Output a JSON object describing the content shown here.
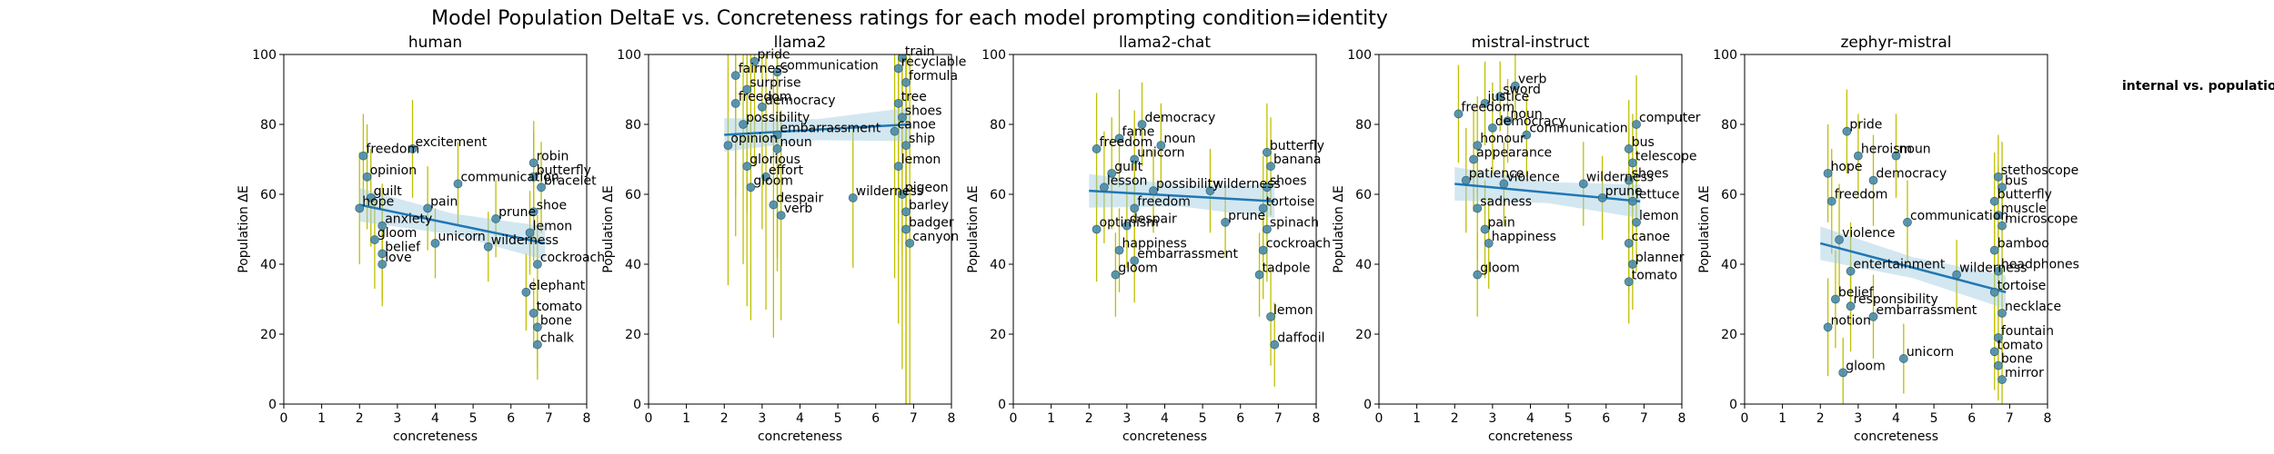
{
  "figure": {
    "title": "Model Population DeltaE vs. Concreteness ratings for each model prompting condition=identity",
    "legend_title": "internal vs. population d"
  },
  "colors": {
    "error_bar": "#bfbf00",
    "point": "#4a8ba8",
    "point_edge": "#2b5f78",
    "fit": "#1f77b4",
    "band": "#9ecae1"
  },
  "chart_data": [
    {
      "type": "scatter",
      "title": "human",
      "xlabel": "concreteness",
      "ylabel": "Population ΔE",
      "xlim": [
        0,
        8
      ],
      "ylim": [
        0,
        100
      ],
      "xticks": [
        "0",
        "1",
        "2",
        "3",
        "4",
        "5",
        "6",
        "7",
        "8"
      ],
      "yticks": [
        "0",
        "20",
        "40",
        "60",
        "80",
        "100"
      ],
      "fit": {
        "x": [
          2.0,
          6.9
        ],
        "y": [
          57,
          46
        ]
      },
      "points": [
        {
          "x": 2.1,
          "y": 71,
          "err": 12,
          "label": "freedom"
        },
        {
          "x": 3.4,
          "y": 73,
          "err": 14,
          "label": "excitement"
        },
        {
          "x": 2.2,
          "y": 65,
          "err": 15,
          "label": "opinion"
        },
        {
          "x": 4.6,
          "y": 63,
          "err": 12,
          "label": "communication"
        },
        {
          "x": 2.3,
          "y": 59,
          "err": 14,
          "label": "guilt"
        },
        {
          "x": 2.0,
          "y": 56,
          "err": 16,
          "label": "hope"
        },
        {
          "x": 3.8,
          "y": 56,
          "err": 12,
          "label": "pain"
        },
        {
          "x": 2.6,
          "y": 51,
          "err": 12,
          "label": "anxiety"
        },
        {
          "x": 2.4,
          "y": 47,
          "err": 14,
          "label": "gloom"
        },
        {
          "x": 2.6,
          "y": 43,
          "err": 13,
          "label": "belief"
        },
        {
          "x": 2.6,
          "y": 40,
          "err": 12,
          "label": "love"
        },
        {
          "x": 4.0,
          "y": 46,
          "err": 10,
          "label": "unicorn"
        },
        {
          "x": 5.4,
          "y": 45,
          "err": 10,
          "label": "wilderness"
        },
        {
          "x": 5.6,
          "y": 53,
          "err": 11,
          "label": "prune"
        },
        {
          "x": 6.6,
          "y": 69,
          "err": 12,
          "label": "robin"
        },
        {
          "x": 6.6,
          "y": 65,
          "err": 13,
          "label": "butterfly"
        },
        {
          "x": 6.8,
          "y": 62,
          "err": 13,
          "label": "bracelet"
        },
        {
          "x": 6.6,
          "y": 55,
          "err": 14,
          "label": "shoe"
        },
        {
          "x": 6.5,
          "y": 49,
          "err": 12,
          "label": "lemon"
        },
        {
          "x": 6.7,
          "y": 40,
          "err": 14,
          "label": "cockroach"
        },
        {
          "x": 6.4,
          "y": 32,
          "err": 11,
          "label": "elephant"
        },
        {
          "x": 6.6,
          "y": 26,
          "err": 10,
          "label": "tomato"
        },
        {
          "x": 6.7,
          "y": 22,
          "err": 12,
          "label": "bone"
        },
        {
          "x": 6.7,
          "y": 17,
          "err": 10,
          "label": "chalk"
        }
      ]
    },
    {
      "type": "scatter",
      "title": "llama2",
      "xlabel": "concreteness",
      "ylabel": "Population ΔE",
      "xlim": [
        0,
        8
      ],
      "ylim": [
        0,
        100
      ],
      "xticks": [
        "0",
        "1",
        "2",
        "3",
        "4",
        "5",
        "6",
        "7",
        "8"
      ],
      "yticks": [
        "0",
        "20",
        "40",
        "60",
        "80",
        "100"
      ],
      "fit": {
        "x": [
          2.0,
          6.9
        ],
        "y": [
          77,
          80
        ]
      },
      "points": [
        {
          "x": 2.8,
          "y": 98,
          "err": 30,
          "label": "pride"
        },
        {
          "x": 2.3,
          "y": 94,
          "err": 35,
          "label": "fairness"
        },
        {
          "x": 3.4,
          "y": 95,
          "err": 30,
          "label": "communication"
        },
        {
          "x": 2.6,
          "y": 90,
          "err": 35,
          "label": "surprise"
        },
        {
          "x": 2.3,
          "y": 86,
          "err": 38,
          "label": "freedom"
        },
        {
          "x": 3.0,
          "y": 85,
          "err": 35,
          "label": "democracy"
        },
        {
          "x": 2.5,
          "y": 80,
          "err": 40,
          "label": "possibility"
        },
        {
          "x": 3.4,
          "y": 77,
          "err": 35,
          "label": "embarrassment"
        },
        {
          "x": 2.1,
          "y": 74,
          "err": 40,
          "label": "opinion"
        },
        {
          "x": 3.4,
          "y": 73,
          "err": 35,
          "label": "noun"
        },
        {
          "x": 2.6,
          "y": 68,
          "err": 40,
          "label": "glorious"
        },
        {
          "x": 3.1,
          "y": 65,
          "err": 38,
          "label": "effort"
        },
        {
          "x": 2.7,
          "y": 62,
          "err": 38,
          "label": "gloom"
        },
        {
          "x": 3.3,
          "y": 57,
          "err": 38,
          "label": "despair"
        },
        {
          "x": 3.5,
          "y": 54,
          "err": 30,
          "label": "verb"
        },
        {
          "x": 5.4,
          "y": 59,
          "err": 20,
          "label": "wilderness"
        },
        {
          "x": 6.7,
          "y": 99,
          "err": 30,
          "label": "train"
        },
        {
          "x": 6.6,
          "y": 96,
          "err": 35,
          "label": "recyclable"
        },
        {
          "x": 6.8,
          "y": 92,
          "err": 35,
          "label": "formula"
        },
        {
          "x": 6.6,
          "y": 86,
          "err": 40,
          "label": "tree"
        },
        {
          "x": 6.7,
          "y": 82,
          "err": 40,
          "label": "shoes"
        },
        {
          "x": 6.5,
          "y": 78,
          "err": 42,
          "label": "canoe"
        },
        {
          "x": 6.8,
          "y": 74,
          "err": 42,
          "label": "ship"
        },
        {
          "x": 6.6,
          "y": 68,
          "err": 45,
          "label": "lemon"
        },
        {
          "x": 6.7,
          "y": 60,
          "err": 50,
          "label": "pigeon"
        },
        {
          "x": 6.8,
          "y": 55,
          "err": 55,
          "label": "barley"
        },
        {
          "x": 6.8,
          "y": 50,
          "err": 52,
          "label": "badger"
        },
        {
          "x": 6.9,
          "y": 46,
          "err": 55,
          "label": "canyon"
        }
      ]
    },
    {
      "type": "scatter",
      "title": "llama2-chat",
      "xlabel": "concreteness",
      "ylabel": "Population ΔE",
      "xlim": [
        0,
        8
      ],
      "ylim": [
        0,
        100
      ],
      "xticks": [
        "0",
        "1",
        "2",
        "3",
        "4",
        "5",
        "6",
        "7",
        "8"
      ],
      "yticks": [
        "0",
        "20",
        "40",
        "60",
        "80",
        "100"
      ],
      "fit": {
        "x": [
          2.0,
          6.9
        ],
        "y": [
          61,
          58
        ]
      },
      "points": [
        {
          "x": 3.4,
          "y": 80,
          "err": 12,
          "label": "democracy"
        },
        {
          "x": 2.8,
          "y": 76,
          "err": 14,
          "label": "fame"
        },
        {
          "x": 3.9,
          "y": 74,
          "err": 12,
          "label": "noun"
        },
        {
          "x": 2.2,
          "y": 73,
          "err": 16,
          "label": "freedom"
        },
        {
          "x": 3.2,
          "y": 70,
          "err": 14,
          "label": "unicorn"
        },
        {
          "x": 2.6,
          "y": 66,
          "err": 16,
          "label": "guilt"
        },
        {
          "x": 2.4,
          "y": 62,
          "err": 16,
          "label": "lesson"
        },
        {
          "x": 3.7,
          "y": 61,
          "err": 12,
          "label": "possibility"
        },
        {
          "x": 5.2,
          "y": 61,
          "err": 12,
          "label": "wilderness"
        },
        {
          "x": 3.2,
          "y": 56,
          "err": 14,
          "label": "freedom"
        },
        {
          "x": 2.2,
          "y": 50,
          "err": 15,
          "label": "optimism"
        },
        {
          "x": 3.0,
          "y": 51,
          "err": 12,
          "label": "despair"
        },
        {
          "x": 2.8,
          "y": 44,
          "err": 12,
          "label": "happiness"
        },
        {
          "x": 3.2,
          "y": 41,
          "err": 12,
          "label": "embarrassment"
        },
        {
          "x": 2.7,
          "y": 37,
          "err": 12,
          "label": "gloom"
        },
        {
          "x": 5.6,
          "y": 52,
          "err": 10,
          "label": "prune"
        },
        {
          "x": 6.7,
          "y": 72,
          "err": 14,
          "label": "butterfly"
        },
        {
          "x": 6.8,
          "y": 68,
          "err": 14,
          "label": "banana"
        },
        {
          "x": 6.7,
          "y": 62,
          "err": 14,
          "label": "shoes"
        },
        {
          "x": 6.6,
          "y": 56,
          "err": 15,
          "label": "tortoise"
        },
        {
          "x": 6.7,
          "y": 50,
          "err": 15,
          "label": "spinach"
        },
        {
          "x": 6.6,
          "y": 44,
          "err": 14,
          "label": "cockroach"
        },
        {
          "x": 6.5,
          "y": 37,
          "err": 12,
          "label": "tadpole"
        },
        {
          "x": 6.8,
          "y": 25,
          "err": 14,
          "label": "lemon"
        },
        {
          "x": 6.9,
          "y": 17,
          "err": 12,
          "label": "daffodil"
        }
      ]
    },
    {
      "type": "scatter",
      "title": "mistral-instruct",
      "xlabel": "concreteness",
      "ylabel": "Population ΔE",
      "xlim": [
        0,
        8
      ],
      "ylim": [
        0,
        100
      ],
      "xticks": [
        "0",
        "1",
        "2",
        "3",
        "4",
        "5",
        "6",
        "7",
        "8"
      ],
      "yticks": [
        "0",
        "20",
        "40",
        "60",
        "80",
        "100"
      ],
      "fit": {
        "x": [
          2.0,
          6.9
        ],
        "y": [
          63,
          58
        ]
      },
      "points": [
        {
          "x": 3.6,
          "y": 91,
          "err": 10,
          "label": "verb"
        },
        {
          "x": 3.2,
          "y": 88,
          "err": 10,
          "label": "sword"
        },
        {
          "x": 2.8,
          "y": 86,
          "err": 12,
          "label": "justice"
        },
        {
          "x": 2.1,
          "y": 83,
          "err": 14,
          "label": "freedom"
        },
        {
          "x": 3.4,
          "y": 81,
          "err": 12,
          "label": "noun"
        },
        {
          "x": 3.0,
          "y": 79,
          "err": 13,
          "label": "democracy"
        },
        {
          "x": 3.9,
          "y": 77,
          "err": 12,
          "label": "communication"
        },
        {
          "x": 2.6,
          "y": 74,
          "err": 14,
          "label": "honour"
        },
        {
          "x": 2.5,
          "y": 70,
          "err": 15,
          "label": "appearance"
        },
        {
          "x": 2.3,
          "y": 64,
          "err": 15,
          "label": "patience"
        },
        {
          "x": 3.3,
          "y": 63,
          "err": 12,
          "label": "violence"
        },
        {
          "x": 5.4,
          "y": 63,
          "err": 12,
          "label": "wilderness"
        },
        {
          "x": 5.9,
          "y": 59,
          "err": 12,
          "label": "prune"
        },
        {
          "x": 2.6,
          "y": 56,
          "err": 15,
          "label": "sadness"
        },
        {
          "x": 2.8,
          "y": 50,
          "err": 14,
          "label": "pain"
        },
        {
          "x": 2.9,
          "y": 46,
          "err": 13,
          "label": "happiness"
        },
        {
          "x": 2.6,
          "y": 37,
          "err": 12,
          "label": "gloom"
        },
        {
          "x": 6.8,
          "y": 80,
          "err": 14,
          "label": "computer"
        },
        {
          "x": 6.6,
          "y": 73,
          "err": 14,
          "label": "bus"
        },
        {
          "x": 6.7,
          "y": 69,
          "err": 14,
          "label": "telescope"
        },
        {
          "x": 6.6,
          "y": 64,
          "err": 15,
          "label": "shoes"
        },
        {
          "x": 6.7,
          "y": 58,
          "err": 15,
          "label": "lettuce"
        },
        {
          "x": 6.8,
          "y": 52,
          "err": 14,
          "label": "lemon"
        },
        {
          "x": 6.6,
          "y": 46,
          "err": 14,
          "label": "canoe"
        },
        {
          "x": 6.7,
          "y": 40,
          "err": 13,
          "label": "planner"
        },
        {
          "x": 6.6,
          "y": 35,
          "err": 12,
          "label": "tomato"
        }
      ]
    },
    {
      "type": "scatter",
      "title": "zephyr-mistral",
      "xlabel": "concreteness",
      "ylabel": "Population ΔE",
      "xlim": [
        0,
        8
      ],
      "ylim": [
        0,
        100
      ],
      "xticks": [
        "0",
        "1",
        "2",
        "3",
        "4",
        "5",
        "6",
        "7",
        "8"
      ],
      "yticks": [
        "0",
        "20",
        "40",
        "60",
        "80",
        "100"
      ],
      "fit": {
        "x": [
          2.0,
          6.9
        ],
        "y": [
          46,
          32
        ]
      },
      "points": [
        {
          "x": 2.7,
          "y": 78,
          "err": 12,
          "label": "pride"
        },
        {
          "x": 3.0,
          "y": 71,
          "err": 12,
          "label": "heroism"
        },
        {
          "x": 4.0,
          "y": 71,
          "err": 12,
          "label": "noun"
        },
        {
          "x": 2.2,
          "y": 66,
          "err": 14,
          "label": "hope"
        },
        {
          "x": 3.4,
          "y": 64,
          "err": 13,
          "label": "democracy"
        },
        {
          "x": 2.3,
          "y": 58,
          "err": 15,
          "label": "freedom"
        },
        {
          "x": 4.3,
          "y": 52,
          "err": 12,
          "label": "communication"
        },
        {
          "x": 2.5,
          "y": 47,
          "err": 16,
          "label": "violence"
        },
        {
          "x": 2.8,
          "y": 38,
          "err": 14,
          "label": "entertainment"
        },
        {
          "x": 5.6,
          "y": 37,
          "err": 10,
          "label": "wilderness"
        },
        {
          "x": 2.4,
          "y": 30,
          "err": 14,
          "label": "belief"
        },
        {
          "x": 2.8,
          "y": 28,
          "err": 13,
          "label": "responsibility"
        },
        {
          "x": 3.4,
          "y": 25,
          "err": 12,
          "label": "embarrassment"
        },
        {
          "x": 2.2,
          "y": 22,
          "err": 14,
          "label": "notion"
        },
        {
          "x": 4.2,
          "y": 13,
          "err": 10,
          "label": "unicorn"
        },
        {
          "x": 2.6,
          "y": 9,
          "err": 10,
          "label": "gloom"
        },
        {
          "x": 6.7,
          "y": 65,
          "err": 12,
          "label": "stethoscope"
        },
        {
          "x": 6.8,
          "y": 62,
          "err": 13,
          "label": "bus"
        },
        {
          "x": 6.6,
          "y": 58,
          "err": 14,
          "label": "butterfly"
        },
        {
          "x": 6.7,
          "y": 54,
          "err": 14,
          "label": "muscle"
        },
        {
          "x": 6.8,
          "y": 51,
          "err": 14,
          "label": "microscope"
        },
        {
          "x": 6.6,
          "y": 44,
          "err": 14,
          "label": "bamboo"
        },
        {
          "x": 6.7,
          "y": 38,
          "err": 13,
          "label": "headphones"
        },
        {
          "x": 6.6,
          "y": 32,
          "err": 13,
          "label": "tortoise"
        },
        {
          "x": 6.8,
          "y": 26,
          "err": 12,
          "label": "necklace"
        },
        {
          "x": 6.7,
          "y": 19,
          "err": 12,
          "label": "fountain"
        },
        {
          "x": 6.6,
          "y": 15,
          "err": 11,
          "label": "tomato"
        },
        {
          "x": 6.7,
          "y": 11,
          "err": 10,
          "label": "bone"
        },
        {
          "x": 6.8,
          "y": 7,
          "err": 9,
          "label": "mirror"
        }
      ]
    }
  ]
}
